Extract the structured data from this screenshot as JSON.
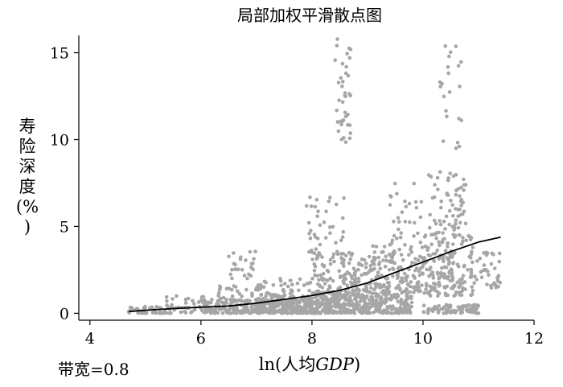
{
  "chart_data": {
    "type": "scatter",
    "title": "局部加权平滑散点图",
    "xlabel_prefix": "ln(人均",
    "xlabel_italic": "GDP",
    "xlabel_suffix": ")",
    "ylabel": "寿险深度(%)",
    "ylabel_chars": [
      "寿",
      "险",
      "深",
      "度",
      "(%",
      ")"
    ],
    "note": "带宽=0.8",
    "xlim": [
      3.8,
      12
    ],
    "ylim": [
      -0.4,
      16
    ],
    "xticks": [
      4,
      6,
      8,
      10,
      12
    ],
    "yticks": [
      0,
      5,
      10,
      15
    ],
    "grid": false,
    "point_color": "#a6a6a6",
    "line_color": "#000000",
    "lowess_line": {
      "x": [
        4.7,
        5.0,
        5.5,
        6.0,
        6.5,
        7.0,
        7.5,
        8.0,
        8.5,
        9.0,
        9.5,
        10.0,
        10.5,
        11.0,
        11.4
      ],
      "y": [
        0.1,
        0.17,
        0.27,
        0.35,
        0.42,
        0.58,
        0.8,
        1.02,
        1.32,
        1.75,
        2.35,
        2.95,
        3.55,
        4.1,
        4.38
      ]
    },
    "clusters": [
      {
        "x": [
          4.7,
          6.0
        ],
        "y": [
          0.0,
          0.4
        ],
        "n": 60
      },
      {
        "x": [
          5.3,
          6.2
        ],
        "y": [
          0.3,
          1.0
        ],
        "n": 25
      },
      {
        "x": [
          6.0,
          7.0
        ],
        "y": [
          0.0,
          0.8
        ],
        "n": 120
      },
      {
        "x": [
          6.3,
          7.0
        ],
        "y": [
          0.7,
          1.6
        ],
        "n": 30
      },
      {
        "x": [
          6.5,
          7.0
        ],
        "y": [
          2.0,
          3.6
        ],
        "n": 25
      },
      {
        "x": [
          7.0,
          8.0
        ],
        "y": [
          0.0,
          1.0
        ],
        "n": 260
      },
      {
        "x": [
          7.0,
          8.0
        ],
        "y": [
          1.0,
          2.0
        ],
        "n": 45
      },
      {
        "x": [
          8.0,
          9.0
        ],
        "y": [
          0.0,
          1.2
        ],
        "n": 260
      },
      {
        "x": [
          8.0,
          9.0
        ],
        "y": [
          1.2,
          3.5
        ],
        "n": 130
      },
      {
        "x": [
          7.9,
          8.6
        ],
        "y": [
          3.5,
          6.7
        ],
        "n": 35
      },
      {
        "x": [
          8.4,
          8.7
        ],
        "y": [
          9.8,
          15.8
        ],
        "n": 40
      },
      {
        "x": [
          9.0,
          9.8
        ],
        "y": [
          0.0,
          1.2
        ],
        "n": 160
      },
      {
        "x": [
          9.0,
          10.0
        ],
        "y": [
          1.2,
          4.0
        ],
        "n": 160
      },
      {
        "x": [
          9.4,
          10.0
        ],
        "y": [
          4.0,
          7.5
        ],
        "n": 30
      },
      {
        "x": [
          10.0,
          11.0
        ],
        "y": [
          0.0,
          0.5
        ],
        "n": 90
      },
      {
        "x": [
          10.0,
          10.9
        ],
        "y": [
          1.0,
          4.5
        ],
        "n": 170
      },
      {
        "x": [
          10.1,
          10.8
        ],
        "y": [
          4.5,
          8.2
        ],
        "n": 70
      },
      {
        "x": [
          10.3,
          10.7
        ],
        "y": [
          9.5,
          15.5
        ],
        "n": 22
      },
      {
        "x": [
          10.8,
          11.4
        ],
        "y": [
          1.4,
          3.6
        ],
        "n": 40
      }
    ]
  }
}
